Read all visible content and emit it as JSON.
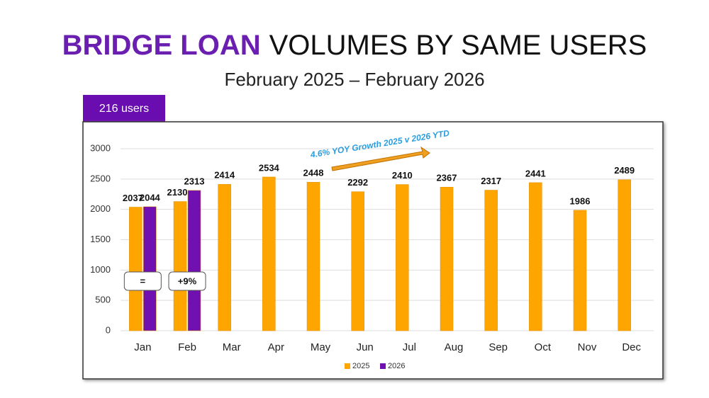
{
  "title_highlight": "BRIDGE LOAN",
  "title": "VOLUMES BY SAME USERS",
  "subtitle": "February 2025 – February 2026",
  "badge": "216 users",
  "chart_data": {
    "type": "bar",
    "categories": [
      "Jan",
      "Feb",
      "Mar",
      "Apr",
      "May",
      "Jun",
      "Jul",
      "Aug",
      "Sep",
      "Oct",
      "Nov",
      "Dec"
    ],
    "series": [
      {
        "name": "2025",
        "color": "#ffa500",
        "values": [
          2037,
          2130,
          2414,
          2534,
          2448,
          2292,
          2410,
          2367,
          2317,
          2441,
          1986,
          2489
        ]
      },
      {
        "name": "2026",
        "color": "#7010b0",
        "values": [
          2044,
          2313,
          null,
          null,
          null,
          null,
          null,
          null,
          null,
          null,
          null,
          null
        ]
      }
    ],
    "ylim": [
      0,
      3000
    ],
    "yticks": [
      0,
      500,
      1000,
      1500,
      2000,
      2500,
      3000
    ],
    "grid": true,
    "legend": "bottom",
    "annotations": [
      "4.6% YOY Growth 2025 v 2026 YTD",
      "=",
      "+9%"
    ]
  }
}
